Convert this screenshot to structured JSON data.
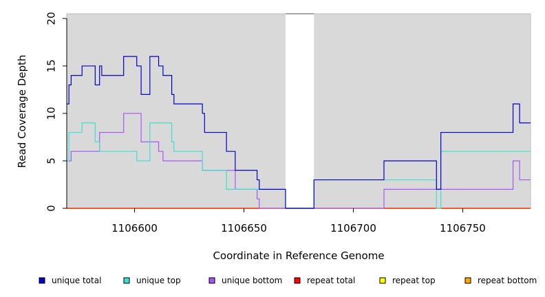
{
  "chart_data": {
    "type": "line",
    "title": "",
    "xlabel": "Coordinate in Reference Genome",
    "ylabel": "Read Coverage Depth",
    "xlim": [
      1106569,
      1106781
    ],
    "ylim": [
      0,
      20.5
    ],
    "x_ticks": [
      1106600,
      1106650,
      1106700,
      1106750
    ],
    "y_ticks": [
      0,
      5,
      10,
      15,
      20
    ],
    "background_color": "#d9d9d9",
    "gap_region": [
      1106669,
      1106682
    ],
    "legend_position": "bottom",
    "series": [
      {
        "name": "unique total",
        "color": "#0000cd",
        "points": [
          [
            1106569,
            11
          ],
          [
            1106570,
            13
          ],
          [
            1106571,
            14
          ],
          [
            1106576,
            15
          ],
          [
            1106582,
            13
          ],
          [
            1106584,
            15
          ],
          [
            1106585,
            14
          ],
          [
            1106595,
            16
          ],
          [
            1106601,
            15
          ],
          [
            1106603,
            12
          ],
          [
            1106607,
            16
          ],
          [
            1106611,
            15
          ],
          [
            1106613,
            14
          ],
          [
            1106617,
            12
          ],
          [
            1106618,
            11
          ],
          [
            1106631,
            10
          ],
          [
            1106632,
            8
          ],
          [
            1106642,
            6
          ],
          [
            1106646,
            4
          ],
          [
            1106656,
            3
          ],
          [
            1106657,
            2
          ],
          [
            1106669,
            0
          ],
          [
            1106682,
            3
          ],
          [
            1106714,
            5
          ],
          [
            1106738,
            2
          ],
          [
            1106740,
            8
          ],
          [
            1106773,
            11
          ],
          [
            1106776,
            9
          ],
          [
            1106781,
            9
          ]
        ]
      },
      {
        "name": "unique top",
        "color": "#40e0d0",
        "points": [
          [
            1106569,
            5
          ],
          [
            1106570,
            8
          ],
          [
            1106576,
            9
          ],
          [
            1106582,
            7
          ],
          [
            1106584,
            6
          ],
          [
            1106601,
            5
          ],
          [
            1106607,
            9
          ],
          [
            1106617,
            7
          ],
          [
            1106618,
            6
          ],
          [
            1106631,
            4
          ],
          [
            1106642,
            2
          ],
          [
            1106646,
            2
          ],
          [
            1106657,
            2
          ],
          [
            1106669,
            0
          ],
          [
            1106682,
            3
          ],
          [
            1106714,
            3
          ],
          [
            1106738,
            0
          ],
          [
            1106740,
            6
          ],
          [
            1106781,
            6
          ]
        ]
      },
      {
        "name": "unique bottom",
        "color": "#a855f7",
        "points": [
          [
            1106569,
            5
          ],
          [
            1106571,
            6
          ],
          [
            1106584,
            8
          ],
          [
            1106595,
            10
          ],
          [
            1106603,
            7
          ],
          [
            1106611,
            6
          ],
          [
            1106613,
            5
          ],
          [
            1106631,
            4
          ],
          [
            1106646,
            2
          ],
          [
            1106656,
            1
          ],
          [
            1106657,
            0
          ],
          [
            1106682,
            0
          ],
          [
            1106714,
            2
          ],
          [
            1106773,
            5
          ],
          [
            1106776,
            3
          ],
          [
            1106781,
            3
          ]
        ]
      },
      {
        "name": "repeat total",
        "color": "#ff0000",
        "points": [
          [
            1106569,
            0
          ],
          [
            1106781,
            0
          ]
        ]
      },
      {
        "name": "repeat top",
        "color": "#ffff00",
        "points": [
          [
            1106569,
            0
          ],
          [
            1106781,
            0
          ]
        ]
      },
      {
        "name": "repeat bottom",
        "color": "#ffa500",
        "points": [
          [
            1106569,
            0
          ],
          [
            1106781,
            0
          ]
        ]
      }
    ]
  }
}
